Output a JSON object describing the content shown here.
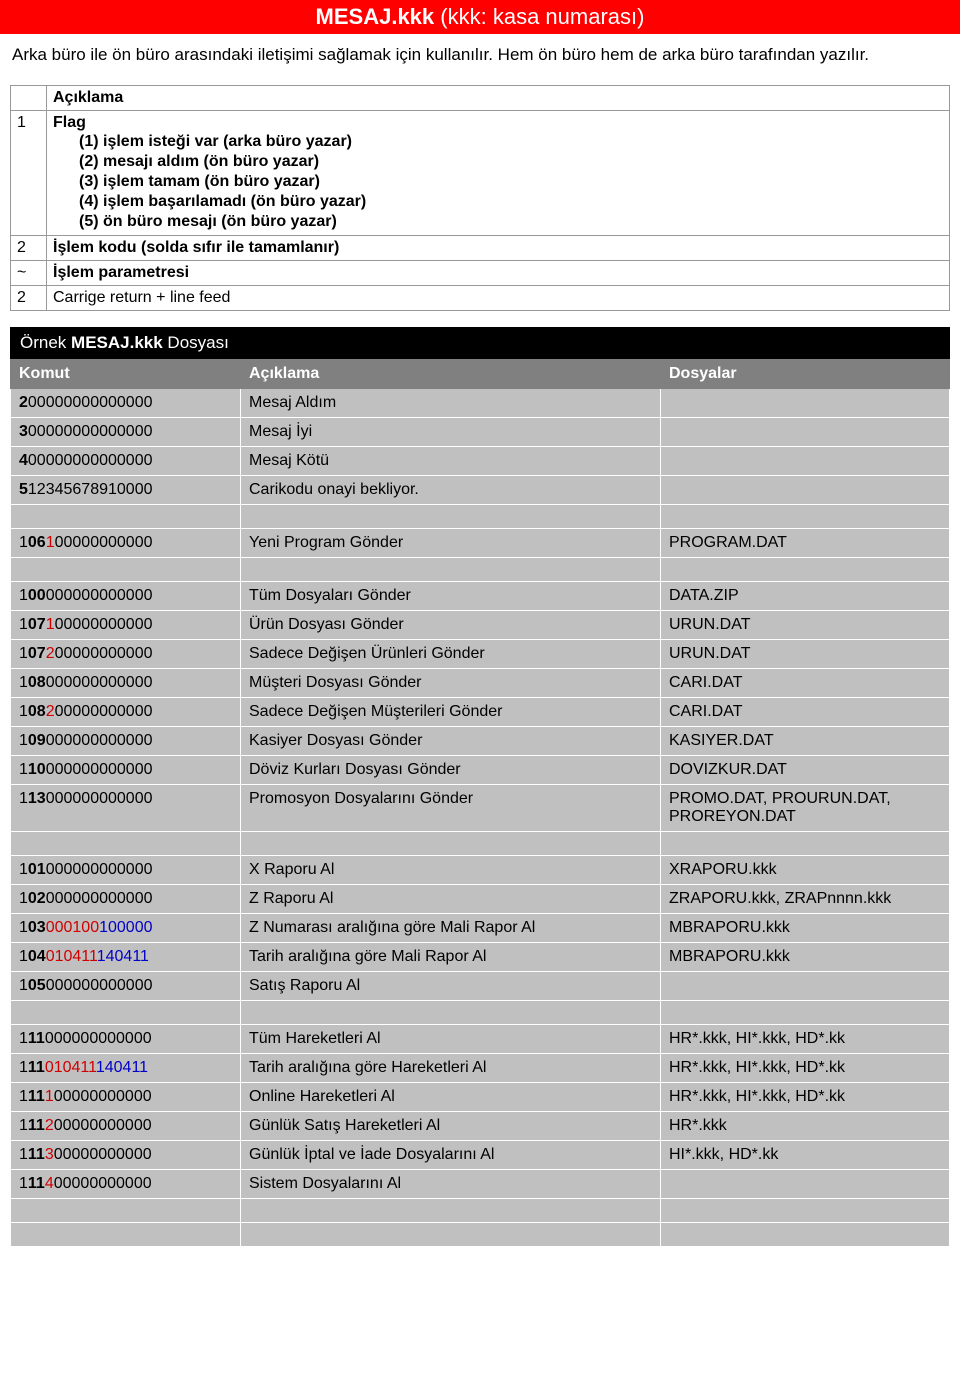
{
  "header": {
    "file": "MESAJ.kkk",
    "subtitle": "(kkk: kasa numarası)"
  },
  "intro": "Arka büro ile ön büro arasındaki iletişimi sağlamak için kullanılır. Hem ön büro hem de arka büro tarafından yazılır.",
  "table1": {
    "header_blank": "",
    "header_label": "Açıklama",
    "rows": [
      {
        "n": "1",
        "label": "Flag",
        "items": [
          "(1)  işlem isteği var (arka büro yazar)",
          "(2)  mesajı aldım (ön büro yazar)",
          "(3)  işlem tamam (ön büro yazar)",
          "(4)  işlem başarılamadı (ön büro yazar)",
          "(5)  ön büro mesajı (ön büro yazar)"
        ]
      },
      {
        "n": "2",
        "label": "İşlem kodu (solda sıfır ile tamamlanır)"
      },
      {
        "n": "~",
        "label": "İşlem parametresi"
      },
      {
        "n": "2",
        "label": "Carrige return + line feed"
      }
    ]
  },
  "section": {
    "prefix": "Örnek ",
    "bold": "MESAJ.kkk",
    "suffix": " Dosyası"
  },
  "table2": {
    "headers": {
      "c1": "Komut",
      "c2": "Açıklama",
      "c3": "Dosyalar"
    },
    "groups": [
      [
        {
          "cmd": [
            {
              "t": "2",
              "b": true
            },
            {
              "t": "00000000000000"
            }
          ],
          "desc": "Mesaj Aldım",
          "files": ""
        },
        {
          "cmd": [
            {
              "t": "3",
              "b": true
            },
            {
              "t": "00000000000000"
            }
          ],
          "desc": "Mesaj İyi",
          "files": ""
        },
        {
          "cmd": [
            {
              "t": "4",
              "b": true
            },
            {
              "t": "00000000000000"
            }
          ],
          "desc": "Mesaj Kötü",
          "files": ""
        },
        {
          "cmd": [
            {
              "t": "5",
              "b": true
            },
            {
              "t": "1234567891"
            },
            {
              "t": "0000"
            }
          ],
          "desc": "Carikodu onayi bekliyor.",
          "files": ""
        }
      ],
      [
        {
          "cmd": [
            {
              "t": "1"
            },
            {
              "t": "06",
              "b": true
            },
            {
              "t": "1",
              "red": true
            },
            {
              "t": "00000000000"
            }
          ],
          "desc": "Yeni Program Gönder",
          "files": "PROGRAM.DAT"
        }
      ],
      [
        {
          "cmd": [
            {
              "t": "1"
            },
            {
              "t": "00",
              "b": true
            },
            {
              "t": "000000000000"
            }
          ],
          "desc": "Tüm Dosyaları Gönder",
          "files": "DATA.ZIP"
        },
        {
          "cmd": [
            {
              "t": "1"
            },
            {
              "t": "07",
              "b": true
            },
            {
              "t": "1",
              "red": true
            },
            {
              "t": "00000000000"
            }
          ],
          "desc": "Ürün Dosyası Gönder",
          "files": "URUN.DAT"
        },
        {
          "cmd": [
            {
              "t": "1"
            },
            {
              "t": "07",
              "b": true
            },
            {
              "t": "2",
              "red": true
            },
            {
              "t": "00000000000"
            }
          ],
          "desc": "Sadece Değişen Ürünleri Gönder",
          "files": "URUN.DAT"
        },
        {
          "cmd": [
            {
              "t": "1"
            },
            {
              "t": "08",
              "b": true
            },
            {
              "t": "000000000000"
            }
          ],
          "desc": "Müşteri Dosyası Gönder",
          "files": "CARI.DAT"
        },
        {
          "cmd": [
            {
              "t": "1"
            },
            {
              "t": "08",
              "b": true
            },
            {
              "t": "2",
              "red": true
            },
            {
              "t": "00000000000"
            }
          ],
          "desc": "Sadece Değişen Müşterileri Gönder",
          "files": "CARI.DAT"
        },
        {
          "cmd": [
            {
              "t": "1"
            },
            {
              "t": "09",
              "b": true
            },
            {
              "t": "000000000000"
            }
          ],
          "desc": "Kasiyer Dosyası Gönder",
          "files": "KASIYER.DAT"
        },
        {
          "cmd": [
            {
              "t": "1"
            },
            {
              "t": "10",
              "b": true
            },
            {
              "t": "000000000000"
            }
          ],
          "desc": "Döviz Kurları Dosyası Gönder",
          "files": "DOVIZKUR.DAT"
        },
        {
          "cmd": [
            {
              "t": "1"
            },
            {
              "t": "13",
              "b": true
            },
            {
              "t": "000000000000"
            }
          ],
          "desc": "Promosyon Dosyalarını Gönder",
          "files": "PROMO.DAT, PROURUN.DAT, PROREYON.DAT"
        }
      ],
      [
        {
          "cmd": [
            {
              "t": "1"
            },
            {
              "t": "01",
              "b": true
            },
            {
              "t": "000000000000"
            }
          ],
          "desc": "X Raporu Al",
          "files": "XRAPORU.kkk"
        },
        {
          "cmd": [
            {
              "t": "1"
            },
            {
              "t": "02",
              "b": true
            },
            {
              "t": "000000000000"
            }
          ],
          "desc": "Z Raporu Al",
          "files": "ZRAPORU.kkk, ZRAPnnnn.kkk"
        },
        {
          "cmd": [
            {
              "t": "1"
            },
            {
              "t": "03",
              "b": true
            },
            {
              "t": "000100",
              "red": true
            },
            {
              "t": "100000",
              "blue": true
            }
          ],
          "desc": "Z Numarası aralığına göre Mali Rapor Al",
          "files": "MBRAPORU.kkk"
        },
        {
          "cmd": [
            {
              "t": "1"
            },
            {
              "t": "04",
              "b": true
            },
            {
              "t": "010411",
              "red": true
            },
            {
              "t": "140411",
              "blue": true
            }
          ],
          "desc": "Tarih aralığına göre Mali Rapor Al",
          "files": "MBRAPORU.kkk"
        },
        {
          "cmd": [
            {
              "t": "1"
            },
            {
              "t": "05",
              "b": true
            },
            {
              "t": "000000000000"
            }
          ],
          "desc": "Satış Raporu Al",
          "files": ""
        }
      ],
      [
        {
          "cmd": [
            {
              "t": "1"
            },
            {
              "t": "11",
              "b": true
            },
            {
              "t": "000000000000"
            }
          ],
          "desc": "Tüm Hareketleri Al",
          "files": "HR*.kkk, HI*.kkk, HD*.kk"
        },
        {
          "cmd": [
            {
              "t": "1"
            },
            {
              "t": "11",
              "b": true
            },
            {
              "t": "010411",
              "red": true
            },
            {
              "t": "140411",
              "blue": true
            }
          ],
          "desc": "Tarih aralığına göre Hareketleri Al",
          "files": "HR*.kkk, HI*.kkk, HD*.kk"
        },
        {
          "cmd": [
            {
              "t": "1"
            },
            {
              "t": "11",
              "b": true
            },
            {
              "t": "1",
              "red": true
            },
            {
              "t": "00000000000"
            }
          ],
          "desc": "Online Hareketleri Al",
          "files": "HR*.kkk, HI*.kkk, HD*.kk"
        },
        {
          "cmd": [
            {
              "t": "1"
            },
            {
              "t": "11",
              "b": true
            },
            {
              "t": "2",
              "red": true
            },
            {
              "t": "00000000000"
            }
          ],
          "desc": "Günlük Satış Hareketleri Al",
          "files": "HR*.kkk"
        },
        {
          "cmd": [
            {
              "t": "1"
            },
            {
              "t": "11",
              "b": true
            },
            {
              "t": "3",
              "red": true
            },
            {
              "t": "00000000000"
            }
          ],
          "desc": "Günlük İptal ve İade Dosyalarını Al",
          "files": "HI*.kkk, HD*.kk"
        },
        {
          "cmd": [
            {
              "t": "1"
            },
            {
              "t": "11",
              "b": true
            },
            {
              "t": "4",
              "red": true
            },
            {
              "t": "00000000000"
            }
          ],
          "desc": "Sistem Dosyalarını Al",
          "files": ""
        }
      ],
      []
    ]
  }
}
